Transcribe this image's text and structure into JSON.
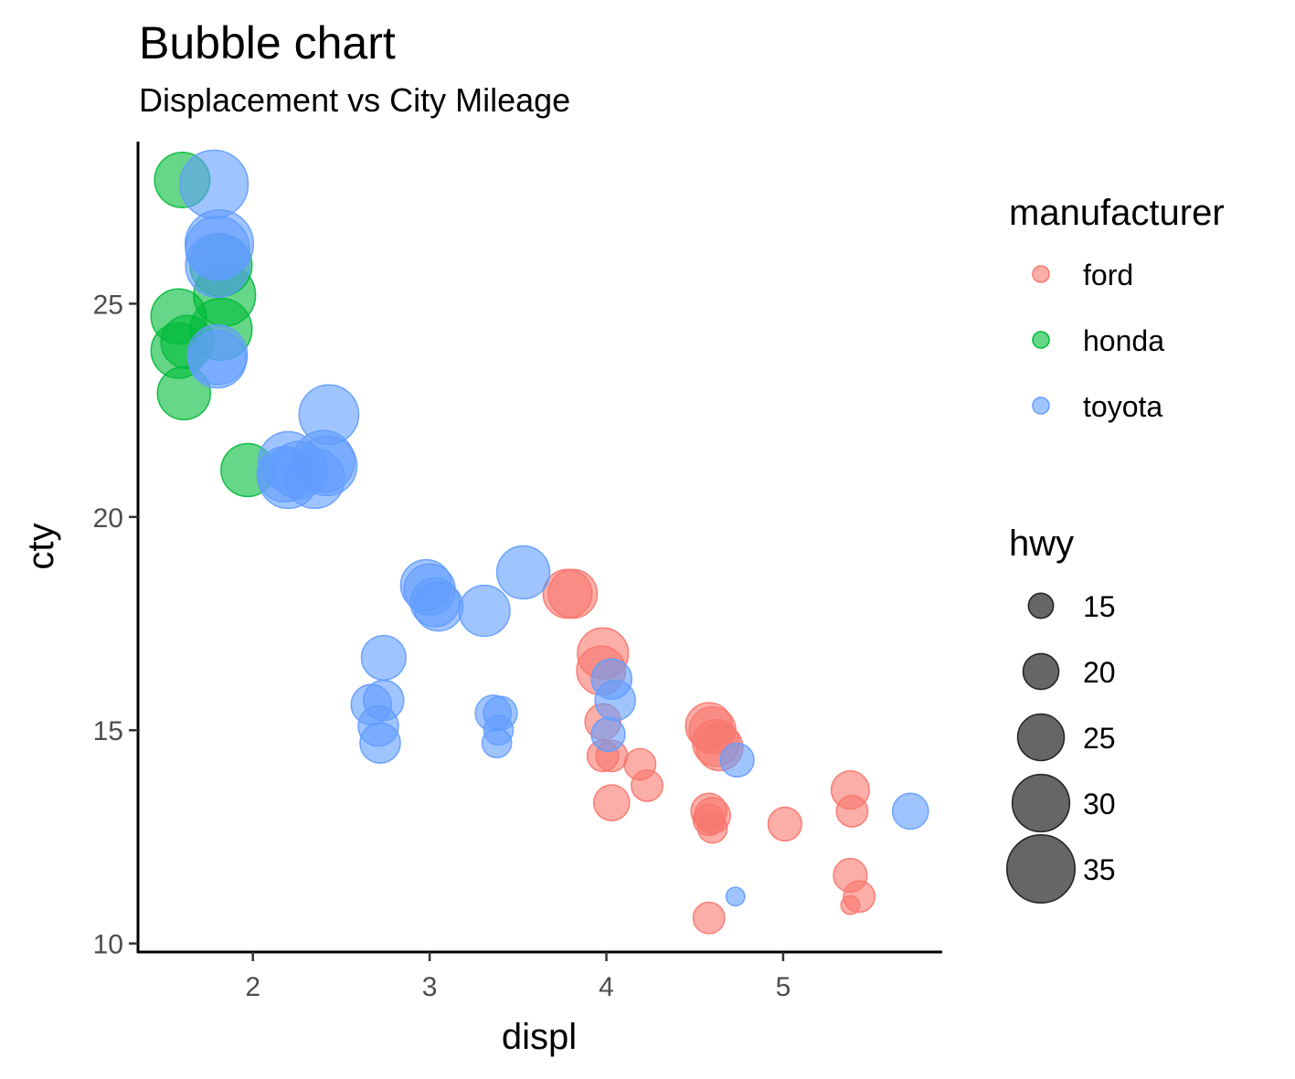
{
  "chart_data": {
    "type": "scatter",
    "title": "Bubble chart",
    "subtitle": "Displacement vs City Mileage",
    "xlabel": "displ",
    "ylabel": "cty",
    "xlim": [
      1.35,
      5.9
    ],
    "ylim": [
      9.8,
      28.8
    ],
    "xticks": [
      2,
      3,
      4,
      5
    ],
    "yticks": [
      10,
      15,
      20,
      25
    ],
    "grid": false,
    "legend_placement": "right",
    "color_legend": {
      "title": "manufacturer",
      "entries": [
        {
          "name": "ford",
          "color": "#F8766D"
        },
        {
          "name": "honda",
          "color": "#00BA38"
        },
        {
          "name": "toyota",
          "color": "#619CFF"
        }
      ]
    },
    "size_legend": {
      "title": "hwy",
      "entries": [
        15,
        20,
        25,
        30,
        35
      ]
    },
    "series": [
      {
        "name": "ford",
        "points": [
          {
            "x": 3.78,
            "y": 18.2,
            "hwy": 26
          },
          {
            "x": 3.81,
            "y": 18.2,
            "hwy": 26
          },
          {
            "x": 3.98,
            "y": 16.8,
            "hwy": 27
          },
          {
            "x": 3.97,
            "y": 16.4,
            "hwy": 26
          },
          {
            "x": 3.98,
            "y": 15.2,
            "hwy": 20
          },
          {
            "x": 3.98,
            "y": 14.4,
            "hwy": 18
          },
          {
            "x": 4.03,
            "y": 14.4,
            "hwy": 18
          },
          {
            "x": 4.19,
            "y": 14.2,
            "hwy": 18
          },
          {
            "x": 4.23,
            "y": 13.7,
            "hwy": 18
          },
          {
            "x": 4.03,
            "y": 13.3,
            "hwy": 20
          },
          {
            "x": 4.58,
            "y": 15.1,
            "hwy": 25
          },
          {
            "x": 4.6,
            "y": 15.0,
            "hwy": 25
          },
          {
            "x": 4.62,
            "y": 14.7,
            "hwy": 25
          },
          {
            "x": 4.64,
            "y": 14.6,
            "hwy": 25
          },
          {
            "x": 4.58,
            "y": 13.1,
            "hwy": 20
          },
          {
            "x": 4.6,
            "y": 13.0,
            "hwy": 20
          },
          {
            "x": 4.58,
            "y": 12.9,
            "hwy": 18
          },
          {
            "x": 4.6,
            "y": 12.7,
            "hwy": 17
          },
          {
            "x": 4.58,
            "y": 10.6,
            "hwy": 18
          },
          {
            "x": 5.01,
            "y": 12.8,
            "hwy": 19
          },
          {
            "x": 5.38,
            "y": 13.6,
            "hwy": 21
          },
          {
            "x": 5.39,
            "y": 13.1,
            "hwy": 18
          },
          {
            "x": 5.38,
            "y": 11.6,
            "hwy": 19
          },
          {
            "x": 5.43,
            "y": 11.1,
            "hwy": 18
          },
          {
            "x": 5.38,
            "y": 10.9,
            "hwy": 12
          }
        ]
      },
      {
        "name": "honda",
        "points": [
          {
            "x": 1.6,
            "y": 27.9,
            "hwy": 29
          },
          {
            "x": 1.58,
            "y": 24.7,
            "hwy": 29
          },
          {
            "x": 1.58,
            "y": 23.9,
            "hwy": 29
          },
          {
            "x": 1.63,
            "y": 24.1,
            "hwy": 28
          },
          {
            "x": 1.61,
            "y": 22.9,
            "hwy": 28
          },
          {
            "x": 1.82,
            "y": 25.9,
            "hwy": 32
          },
          {
            "x": 1.84,
            "y": 25.2,
            "hwy": 32
          },
          {
            "x": 1.82,
            "y": 24.4,
            "hwy": 32
          },
          {
            "x": 1.97,
            "y": 21.1,
            "hwy": 28
          }
        ]
      },
      {
        "name": "toyota",
        "points": [
          {
            "x": 1.78,
            "y": 27.8,
            "hwy": 35
          },
          {
            "x": 1.81,
            "y": 26.4,
            "hwy": 35
          },
          {
            "x": 1.8,
            "y": 26.3,
            "hwy": 33
          },
          {
            "x": 1.8,
            "y": 25.9,
            "hwy": 33
          },
          {
            "x": 1.8,
            "y": 23.8,
            "hwy": 31
          },
          {
            "x": 1.8,
            "y": 23.7,
            "hwy": 30
          },
          {
            "x": 2.2,
            "y": 21.3,
            "hwy": 31
          },
          {
            "x": 2.2,
            "y": 20.9,
            "hwy": 31
          },
          {
            "x": 2.26,
            "y": 21.1,
            "hwy": 30
          },
          {
            "x": 2.18,
            "y": 21.0,
            "hwy": 29
          },
          {
            "x": 2.35,
            "y": 20.9,
            "hwy": 31
          },
          {
            "x": 2.4,
            "y": 21.3,
            "hwy": 32
          },
          {
            "x": 2.42,
            "y": 21.2,
            "hwy": 31
          },
          {
            "x": 2.43,
            "y": 22.4,
            "hwy": 31
          },
          {
            "x": 2.67,
            "y": 15.6,
            "hwy": 22
          },
          {
            "x": 2.74,
            "y": 15.7,
            "hwy": 22
          },
          {
            "x": 2.71,
            "y": 15.1,
            "hwy": 22
          },
          {
            "x": 2.72,
            "y": 14.7,
            "hwy": 22
          },
          {
            "x": 2.74,
            "y": 16.7,
            "hwy": 24
          },
          {
            "x": 2.98,
            "y": 18.4,
            "hwy": 27
          },
          {
            "x": 3.0,
            "y": 18.3,
            "hwy": 27
          },
          {
            "x": 3.03,
            "y": 18.0,
            "hwy": 26
          },
          {
            "x": 3.05,
            "y": 17.9,
            "hwy": 26
          },
          {
            "x": 3.31,
            "y": 17.8,
            "hwy": 27
          },
          {
            "x": 3.53,
            "y": 18.7,
            "hwy": 28
          },
          {
            "x": 3.36,
            "y": 15.4,
            "hwy": 20
          },
          {
            "x": 3.4,
            "y": 15.4,
            "hwy": 19
          },
          {
            "x": 3.39,
            "y": 15.0,
            "hwy": 17
          },
          {
            "x": 3.38,
            "y": 14.7,
            "hwy": 17
          },
          {
            "x": 4.03,
            "y": 16.2,
            "hwy": 22
          },
          {
            "x": 4.05,
            "y": 15.7,
            "hwy": 22
          },
          {
            "x": 4.01,
            "y": 14.9,
            "hwy": 19
          },
          {
            "x": 4.74,
            "y": 14.3,
            "hwy": 19
          },
          {
            "x": 4.73,
            "y": 11.1,
            "hwy": 12
          },
          {
            "x": 5.72,
            "y": 13.1,
            "hwy": 20
          }
        ]
      }
    ]
  }
}
